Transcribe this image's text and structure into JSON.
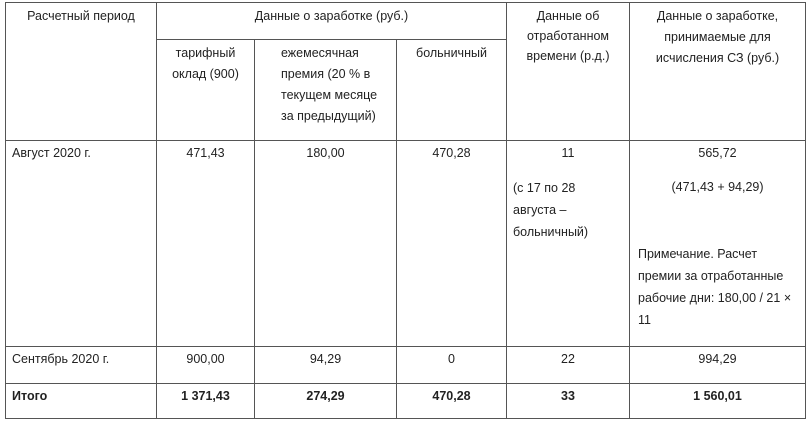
{
  "headers": {
    "period": "Расчетный период",
    "earnings_group": "Данные о заработке (руб.)",
    "salary": "тарифный оклад (900)",
    "bonus": "ежемесячная премия (20 % в текущем месяце за предыдущий)",
    "sick": "больничный",
    "worked_time": "Данные об отработанном времени (р.д.)",
    "sz_earnings": "Данные о заработке, принимаемые для исчисления СЗ (руб.)"
  },
  "rows": [
    {
      "period": "Август 2020 г.",
      "salary": "471,43",
      "bonus": "180,00",
      "sick": "470,28",
      "days": "11",
      "days_note": "(с 17 по 28 августа – больничный)",
      "sz": "565,72",
      "sz_formula": "(471,43 + 94,29)",
      "sz_note": "Примечание. Расчет премии за отработанные рабочие дни: 180,00 / 21 × 11"
    },
    {
      "period": "Сентябрь 2020 г.",
      "salary": "900,00",
      "bonus": "94,29",
      "sick": "0",
      "days": "22",
      "sz": "994,29"
    }
  ],
  "total": {
    "label": "Итого",
    "salary": "1 371,43",
    "bonus": "274,29",
    "sick": "470,28",
    "days": "33",
    "sz": "1 560,01"
  }
}
